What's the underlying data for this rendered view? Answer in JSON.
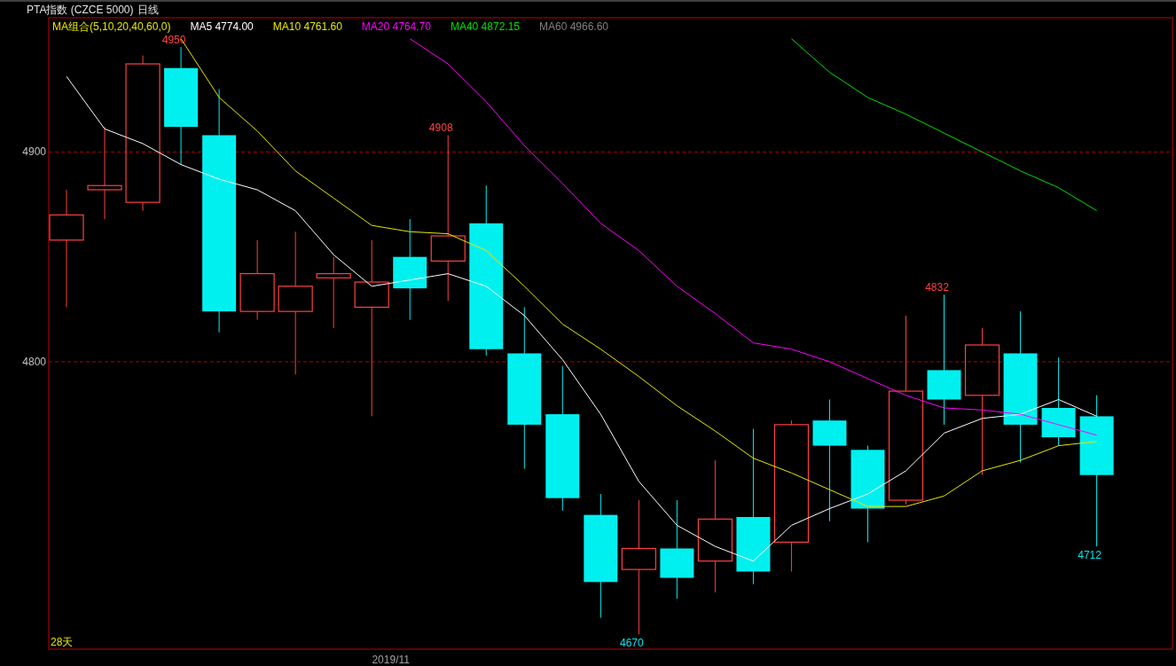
{
  "chart_data": {
    "type": "candlestick",
    "title": "PTA指数 (CZCE 5000)",
    "subtitle": "日线",
    "legend_title": "MA组合(5,10,20,40,60,0)",
    "categories": [
      null,
      null,
      null,
      null,
      null,
      null,
      null,
      null,
      null,
      null,
      null,
      null,
      null,
      null,
      null,
      null,
      null,
      null,
      null,
      null,
      null,
      null,
      null,
      null,
      null,
      null,
      null,
      null
    ],
    "ohlc": [
      [
        4858,
        4882,
        4826,
        4870
      ],
      [
        4882,
        4912,
        4868,
        4884
      ],
      [
        4876,
        4946,
        4872,
        4942
      ],
      [
        4940,
        4950,
        4894,
        4912
      ],
      [
        4908,
        4930,
        4814,
        4824
      ],
      [
        4824,
        4858,
        4820,
        4842
      ],
      [
        4824,
        4862,
        4794,
        4836
      ],
      [
        4840,
        4850,
        4816,
        4842
      ],
      [
        4826,
        4858,
        4774,
        4838
      ],
      [
        4850,
        4868,
        4820,
        4835
      ],
      [
        4848,
        4908,
        4829,
        4860
      ],
      [
        4866,
        4884,
        4803,
        4806
      ],
      [
        4804,
        4826,
        4749,
        4770
      ],
      [
        4775,
        4798,
        4729,
        4735
      ],
      [
        4727,
        4737,
        4678,
        4695
      ],
      [
        4701,
        4734,
        4670,
        4711
      ],
      [
        4711,
        4734,
        4687,
        4697
      ],
      [
        4705,
        4753,
        4690,
        4725
      ],
      [
        4726,
        4768,
        4694,
        4700
      ],
      [
        4714,
        4772,
        4700,
        4770
      ],
      [
        4772,
        4782,
        4724,
        4760
      ],
      [
        4758,
        4760,
        4714,
        4730
      ],
      [
        4734,
        4822,
        4732,
        4786
      ],
      [
        4796,
        4832,
        4770,
        4782
      ],
      [
        4784,
        4816,
        4746,
        4808
      ],
      [
        4804,
        4824,
        4752,
        4770
      ],
      [
        4778,
        4802,
        4760,
        4764
      ],
      [
        4774,
        4784,
        4712,
        4746
      ]
    ],
    "colors": [
      "#ff4040",
      "#ff4040",
      "#ff4040",
      "#00f0f0",
      "#00f0f0",
      "#ff4040",
      "#ff4040",
      "#ff4040",
      "#ff4040",
      "#00f0f0",
      "#ff4040",
      "#00f0f0",
      "#00f0f0",
      "#00f0f0",
      "#00f0f0",
      "#ff4040",
      "#00f0f0",
      "#ff4040",
      "#00f0f0",
      "#ff4040",
      "#00f0f0",
      "#00f0f0",
      "#ff4040",
      "#00f0f0",
      "#ff4040",
      "#00f0f0",
      "#00f0f0",
      "#00f0f0"
    ],
    "series": [
      {
        "type": "line",
        "name": "MA5 4774.00",
        "color": "#ffffff",
        "values": [
          4936,
          4911,
          4904,
          4894,
          4887,
          4882,
          4872,
          4851,
          4836,
          4839,
          4842,
          4836,
          4822,
          4801,
          4775,
          4743,
          4722,
          4712,
          4705,
          4722,
          4730,
          4737,
          4748,
          4766,
          4773,
          4775,
          4782,
          4774
        ]
      },
      {
        "type": "line",
        "name": "MA10 4761.60",
        "color": "#e8e800",
        "values": [
          null,
          null,
          null,
          4954,
          4926,
          4910,
          4891,
          4878,
          4865,
          4862,
          4861,
          4853,
          4836,
          4818,
          4806,
          4793,
          4779,
          4767,
          4754,
          4747,
          4739,
          4731,
          4731,
          4736,
          4748,
          4753,
          4760,
          4762
        ]
      },
      {
        "type": "line",
        "name": "MA20 4764.70",
        "color": "#ff00ff",
        "values": [
          null,
          null,
          null,
          null,
          null,
          null,
          null,
          null,
          null,
          4954,
          4942,
          4924,
          4903,
          4885,
          4866,
          4853,
          4836,
          4823,
          4809,
          4806,
          4800,
          4792,
          4784,
          4778,
          4777,
          4775,
          4770,
          4765
        ]
      },
      {
        "type": "line",
        "name": "MA40 4872.15",
        "color": "#00e000",
        "values": [
          null,
          null,
          null,
          null,
          null,
          null,
          null,
          null,
          null,
          null,
          null,
          null,
          null,
          null,
          null,
          null,
          null,
          null,
          null,
          4954,
          4938,
          4926,
          4918,
          4909,
          4900,
          4891,
          4883,
          4872
        ]
      },
      {
        "type": "line",
        "name": "MA60 4966.60",
        "color": "#808080",
        "values": [
          null,
          null,
          null,
          null,
          null,
          null,
          null,
          null,
          null,
          null,
          null,
          null,
          null,
          null,
          null,
          null,
          null,
          null,
          null,
          null,
          null,
          null,
          null,
          null,
          null,
          null,
          null,
          null
        ]
      }
    ],
    "ylim": [
      4663,
      4964
    ],
    "yticks": [
      4800,
      4900
    ],
    "grid": "y",
    "legend": "top left",
    "annotations": [
      "4950",
      "4908",
      "4832",
      "4670",
      "4712",
      "28天",
      "2019/11"
    ]
  }
}
